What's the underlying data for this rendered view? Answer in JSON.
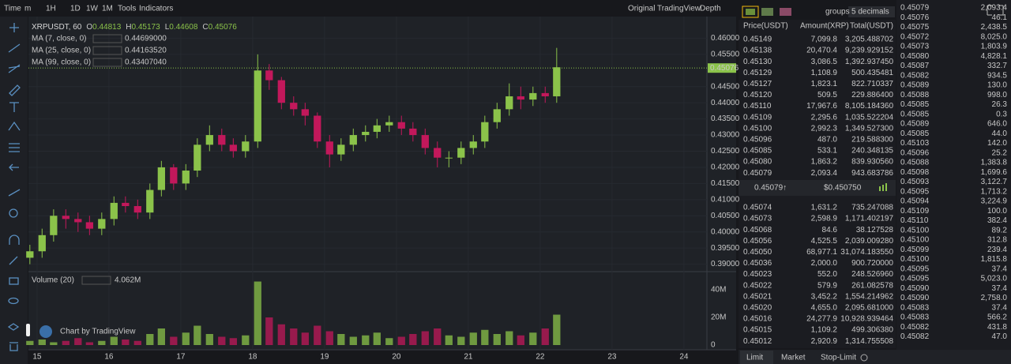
{
  "toolbar": {
    "items": [
      "Time",
      "m",
      "1H",
      "1D",
      "1W",
      "1M",
      "Tools",
      "Indicators"
    ],
    "views": [
      "Original",
      "TradingView",
      "Depth"
    ]
  },
  "chart_data": {
    "type": "candlestick",
    "title": "XRPUSDT, 60",
    "ohlc_legend": [
      {
        "key": "O",
        "value": "0.44813"
      },
      {
        "key": "H",
        "value": "0.45173"
      },
      {
        "key": "L",
        "value": "0.44608"
      },
      {
        "key": "C",
        "value": "0.45076"
      }
    ],
    "moving_averages": [
      {
        "name": "MA (7, close, 0)",
        "value": "0.44699000",
        "color": "#f6c945"
      },
      {
        "name": "MA (25, close, 0)",
        "value": "0.44163520",
        "color": "#d040c0"
      },
      {
        "name": "MA (99, close, 0)",
        "value": "0.43407040",
        "color": "#c0306a"
      }
    ],
    "volume_legend": {
      "name": "Volume (20)",
      "value": "4.062M"
    },
    "watermark": "Chart by TradingView",
    "x": [
      14.9,
      15.07,
      15.23,
      15.4,
      15.57,
      15.73,
      15.9,
      16.07,
      16.23,
      16.4,
      16.57,
      16.73,
      16.9,
      17.07,
      17.23,
      17.4,
      17.57,
      17.73,
      17.9,
      18.07,
      18.23,
      18.4,
      18.57,
      18.73,
      18.9,
      19.07,
      19.23,
      19.4,
      19.57,
      19.73,
      19.9,
      20.07,
      20.23,
      20.4,
      20.57,
      20.73,
      20.9,
      21.07,
      21.23,
      21.4,
      21.57,
      21.73,
      21.9,
      22.07,
      22.23
    ],
    "open": [
      0.392,
      0.394,
      0.399,
      0.405,
      0.404,
      0.403,
      0.401,
      0.404,
      0.409,
      0.408,
      0.406,
      0.413,
      0.42,
      0.415,
      0.419,
      0.427,
      0.43,
      0.427,
      0.425,
      0.428,
      0.45,
      0.447,
      0.44,
      0.438,
      0.436,
      0.428,
      0.424,
      0.427,
      0.43,
      0.431,
      0.433,
      0.434,
      0.432,
      0.43,
      0.426,
      0.423,
      0.423,
      0.426,
      0.428,
      0.434,
      0.438,
      0.442,
      0.441,
      0.443,
      0.442
    ],
    "high": [
      0.396,
      0.401,
      0.407,
      0.407,
      0.406,
      0.405,
      0.406,
      0.411,
      0.411,
      0.41,
      0.415,
      0.422,
      0.421,
      0.421,
      0.429,
      0.433,
      0.432,
      0.429,
      0.43,
      0.455,
      0.452,
      0.448,
      0.442,
      0.44,
      0.437,
      0.43,
      0.429,
      0.432,
      0.433,
      0.435,
      0.436,
      0.436,
      0.434,
      0.432,
      0.428,
      0.425,
      0.428,
      0.43,
      0.436,
      0.44,
      0.446,
      0.445,
      0.445,
      0.445,
      0.457
    ],
    "low": [
      0.39,
      0.392,
      0.397,
      0.401,
      0.4,
      0.399,
      0.399,
      0.402,
      0.406,
      0.404,
      0.404,
      0.411,
      0.413,
      0.413,
      0.417,
      0.425,
      0.425,
      0.423,
      0.423,
      0.426,
      0.444,
      0.438,
      0.436,
      0.433,
      0.426,
      0.42,
      0.422,
      0.425,
      0.428,
      0.429,
      0.431,
      0.43,
      0.428,
      0.424,
      0.42,
      0.42,
      0.421,
      0.424,
      0.426,
      0.432,
      0.436,
      0.438,
      0.439,
      0.44,
      0.44
    ],
    "close": [
      0.394,
      0.399,
      0.405,
      0.404,
      0.403,
      0.401,
      0.404,
      0.409,
      0.408,
      0.406,
      0.413,
      0.42,
      0.415,
      0.419,
      0.427,
      0.43,
      0.427,
      0.425,
      0.428,
      0.45,
      0.447,
      0.44,
      0.438,
      0.436,
      0.428,
      0.424,
      0.427,
      0.43,
      0.431,
      0.433,
      0.434,
      0.432,
      0.43,
      0.426,
      0.423,
      0.423,
      0.426,
      0.428,
      0.434,
      0.438,
      0.442,
      0.441,
      0.443,
      0.442,
      0.451
    ],
    "volume": [
      3000000,
      4000000,
      2000000,
      3000000,
      5000000,
      2000000,
      3000000,
      6000000,
      4000000,
      3000000,
      8000000,
      12000000,
      6000000,
      9000000,
      14000000,
      8000000,
      6000000,
      5000000,
      7000000,
      46000000,
      20000000,
      15000000,
      12000000,
      9000000,
      14000000,
      10000000,
      8000000,
      6000000,
      7000000,
      9000000,
      5000000,
      6000000,
      8000000,
      10000000,
      12000000,
      7000000,
      6000000,
      9000000,
      11000000,
      8000000,
      10000000,
      7000000,
      9000000,
      12000000,
      22000000
    ],
    "colors": {
      "up": "#8bc34a",
      "down": "#c2185b"
    },
    "xlim": [
      14.88,
      24.32
    ],
    "xticks": [
      15,
      16,
      17,
      18,
      19,
      20,
      21,
      22,
      23,
      24
    ],
    "ylim": [
      0.3877,
      0.4667
    ],
    "yticks": [
      {
        "value": 0.46,
        "label": "0.46000"
      },
      {
        "value": 0.455,
        "label": "0.45500"
      },
      {
        "value": 0.445,
        "label": "0.44500"
      },
      {
        "value": 0.44,
        "label": "0.44000"
      },
      {
        "value": 0.435,
        "label": "0.43500"
      },
      {
        "value": 0.43,
        "label": "0.43000"
      },
      {
        "value": 0.425,
        "label": "0.42500"
      },
      {
        "value": 0.42,
        "label": "0.42000"
      },
      {
        "value": 0.415,
        "label": "0.41500"
      },
      {
        "value": 0.41,
        "label": "0.41000"
      },
      {
        "value": 0.405,
        "label": "0.40500"
      },
      {
        "value": 0.4,
        "label": "0.40000"
      },
      {
        "value": 0.395,
        "label": "0.39500"
      },
      {
        "value": 0.39,
        "label": "0.39000"
      }
    ],
    "last_price": 0.45076,
    "volume_ylim": [
      0,
      52600000
    ],
    "volume_yticks": [
      {
        "value": 40000000,
        "label": "40M"
      },
      {
        "value": 20000000,
        "label": "20M"
      },
      0
    ],
    "grid": true
  },
  "order_book": {
    "groups_label": "groups",
    "decimals": "5 decimals",
    "columns": [
      "Price(USDT)",
      "Amount(XRP)",
      "Total(USDT)"
    ],
    "asks": [
      [
        "0.45149",
        "7,099.8",
        "3,205.488702"
      ],
      [
        "0.45138",
        "20,470.4",
        "9,239.929152"
      ],
      [
        "0.45130",
        "3,086.5",
        "1,392.937450"
      ],
      [
        "0.45129",
        "1,108.9",
        "500.435481"
      ],
      [
        "0.45127",
        "1,823.1",
        "822.710337"
      ],
      [
        "0.45120",
        "509.5",
        "229.886400"
      ],
      [
        "0.45110",
        "17,967.6",
        "8,105.184360"
      ],
      [
        "0.45109",
        "2,295.6",
        "1,035.522204"
      ],
      [
        "0.45100",
        "2,992.3",
        "1,349.527300"
      ],
      [
        "0.45096",
        "487.0",
        "219.588300"
      ],
      [
        "0.45085",
        "533.1",
        "240.348135"
      ],
      [
        "0.45080",
        "1,863.2",
        "839.930560"
      ],
      [
        "0.45079",
        "2,093.4",
        "943.683786"
      ]
    ],
    "last": "0.45079↑",
    "last_usd": "$0.450750",
    "bids": [
      [
        "0.45074",
        "1,631.2",
        "735.247088"
      ],
      [
        "0.45073",
        "2,598.9",
        "1,171.402197"
      ],
      [
        "0.45068",
        "84.6",
        "38.127528"
      ],
      [
        "0.45056",
        "4,525.5",
        "2,039.009280"
      ],
      [
        "0.45050",
        "68,977.1",
        "31,074.183550"
      ],
      [
        "0.45036",
        "2,000.0",
        "900.720000"
      ],
      [
        "0.45023",
        "552.0",
        "248.526960"
      ],
      [
        "0.45022",
        "579.9",
        "261.082578"
      ],
      [
        "0.45021",
        "3,452.2",
        "1,554.214962"
      ],
      [
        "0.45020",
        "4,655.0",
        "2,095.681000"
      ],
      [
        "0.45016",
        "24,277.9",
        "10,928.939464"
      ],
      [
        "0.45015",
        "1,109.2",
        "499.306380"
      ],
      [
        "0.45012",
        "2,920.9",
        "1,314.755508"
      ]
    ]
  },
  "trades": [
    [
      "0.45079",
      "2,093.4",
      "buy"
    ],
    [
      "0.45076",
      "46.1",
      "buy"
    ],
    [
      "0.45075",
      "2,438.5",
      "buy"
    ],
    [
      "0.45072",
      "8,025.0",
      "sell"
    ],
    [
      "0.45073",
      "1,803.9",
      "sell"
    ],
    [
      "0.45080",
      "4,828.1",
      "buy"
    ],
    [
      "0.45087",
      "332.7",
      "buy"
    ],
    [
      "0.45082",
      "934.5",
      "buy"
    ],
    [
      "0.45089",
      "130.0",
      "buy"
    ],
    [
      "0.45088",
      "998.0",
      "buy"
    ],
    [
      "0.45085",
      "26.3",
      "sell"
    ],
    [
      "0.45085",
      "0.3",
      "sell"
    ],
    [
      "0.45089",
      "646.0",
      "buy"
    ],
    [
      "0.45085",
      "44.0",
      "sell"
    ],
    [
      "0.45103",
      "142.0",
      "buy"
    ],
    [
      "0.45096",
      "25.2",
      "buy"
    ],
    [
      "0.45088",
      "1,383.8",
      "sell"
    ],
    [
      "0.45098",
      "1,699.6",
      "buy"
    ],
    [
      "0.45093",
      "3,122.7",
      "buy"
    ],
    [
      "0.45095",
      "1,713.2",
      "sell"
    ],
    [
      "0.45094",
      "3,224.9",
      "sell"
    ],
    [
      "0.45109",
      "100.0",
      "buy"
    ],
    [
      "0.45110",
      "382.4",
      "buy"
    ],
    [
      "0.45100",
      "89.2",
      "buy"
    ],
    [
      "0.45100",
      "312.8",
      "buy"
    ],
    [
      "0.45099",
      "239.4",
      "buy"
    ],
    [
      "0.45100",
      "1,815.8",
      "buy"
    ],
    [
      "0.45095",
      "37.4",
      "buy"
    ],
    [
      "0.45095",
      "5,023.0",
      "buy"
    ],
    [
      "0.45090",
      "37.4",
      "buy"
    ],
    [
      "0.45090",
      "2,758.0",
      "buy"
    ],
    [
      "0.45083",
      "37.4",
      "buy"
    ],
    [
      "0.45083",
      "566.2",
      "buy"
    ],
    [
      "0.45082",
      "431.8",
      "buy"
    ],
    [
      "0.45082",
      "47.0",
      "buy"
    ]
  ],
  "order_tabs": [
    "Limit",
    "Market",
    "Stop-Limit"
  ]
}
